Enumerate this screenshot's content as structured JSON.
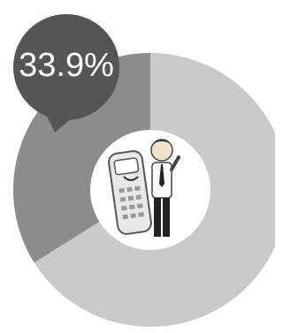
{
  "chart_data": {
    "type": "pie",
    "values": [
      33.9
    ],
    "value_labels": [
      "33.9%"
    ],
    "color": "#8c8c8c",
    "ring_color": "#c9c9c9"
  }
}
